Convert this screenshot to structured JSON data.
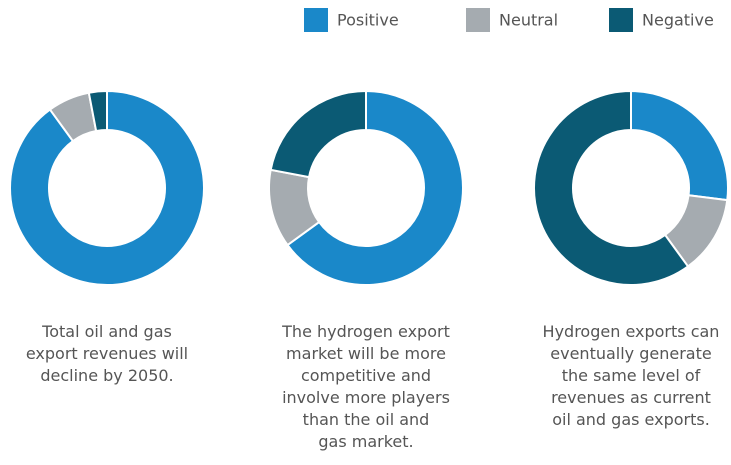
{
  "legend": {
    "labels": [
      "Positive",
      "Neutral",
      "Negative"
    ],
    "colors": [
      "#1a88c9",
      "#a5abb0",
      "#0b5a74"
    ]
  },
  "chart_data": [
    {
      "type": "pie",
      "values": [
        90,
        7,
        3
      ],
      "caption": [
        "Total oil and gas",
        "export revenues will",
        "decline by 2050."
      ]
    },
    {
      "type": "pie",
      "values": [
        65,
        13,
        22
      ],
      "caption": [
        "The hydrogen export",
        "market will be more",
        "competitive and",
        "involve more players",
        "than the oil and",
        "gas market."
      ]
    },
    {
      "type": "pie",
      "values": [
        27,
        13,
        60
      ],
      "caption": [
        "Hydrogen exports can",
        "eventually generate",
        "the same level of",
        "revenues as current",
        "oil and gas exports."
      ]
    }
  ]
}
